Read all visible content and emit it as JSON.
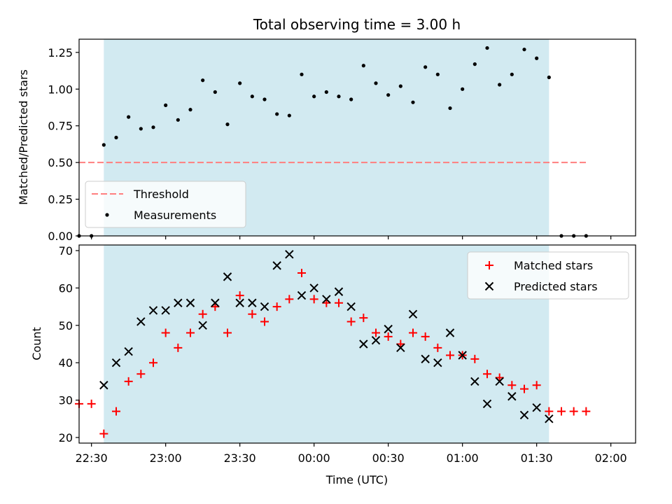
{
  "chart_data": [
    {
      "type": "scatter",
      "title": "Total observing time = 3.00 h",
      "xlabel": "",
      "ylabel": "Matched/Predicted stars",
      "ylim": [
        0,
        1.34
      ],
      "yticks": [
        "0.00",
        "0.25",
        "0.50",
        "0.75",
        "1.00",
        "1.25"
      ],
      "ytick_values": [
        0,
        0.25,
        0.5,
        0.75,
        1.0,
        1.25
      ],
      "xlim_minutes_from_midnight": [
        -95,
        130
      ],
      "shaded_span": [
        "22:35",
        "01:35"
      ],
      "shade_color": "#add8e6",
      "threshold": {
        "name": "Threshold",
        "value": 0.5,
        "x_range": [
          "22:25",
          "01:50"
        ],
        "color": "#ff7f7f"
      },
      "legend": {
        "placement": "lower-left",
        "entries": [
          "Threshold",
          "Measurements"
        ]
      },
      "series": [
        {
          "name": "Measurements",
          "color": "#000000",
          "x": [
            "22:25",
            "22:30",
            "22:35",
            "22:40",
            "22:45",
            "22:50",
            "22:55",
            "23:00",
            "23:05",
            "23:10",
            "23:15",
            "23:20",
            "23:25",
            "23:30",
            "23:35",
            "23:40",
            "23:45",
            "23:50",
            "23:55",
            "00:00",
            "00:05",
            "00:10",
            "00:15",
            "00:20",
            "00:25",
            "00:30",
            "00:35",
            "00:40",
            "00:45",
            "00:50",
            "00:55",
            "01:00",
            "01:05",
            "01:10",
            "01:15",
            "01:20",
            "01:25",
            "01:30",
            "01:35",
            "01:40",
            "01:45",
            "01:50"
          ],
          "y": [
            0.0,
            0.0,
            0.62,
            0.67,
            0.81,
            0.73,
            0.74,
            0.89,
            0.79,
            0.86,
            1.06,
            0.98,
            0.76,
            1.04,
            0.95,
            0.93,
            0.83,
            0.82,
            1.1,
            0.95,
            0.98,
            0.95,
            0.93,
            1.16,
            1.04,
            0.96,
            1.02,
            0.91,
            1.15,
            1.1,
            0.87,
            1.0,
            1.17,
            1.28,
            1.03,
            1.1,
            1.27,
            1.21,
            1.08,
            0.0,
            0.0,
            0.0
          ]
        }
      ]
    },
    {
      "type": "scatter",
      "title": "",
      "xlabel": "Time (UTC)",
      "ylabel": "Count",
      "ylim": [
        18.5,
        71.5
      ],
      "yticks": [
        "20",
        "30",
        "40",
        "50",
        "60",
        "70"
      ],
      "ytick_values": [
        20,
        30,
        40,
        50,
        60,
        70
      ],
      "xticks": [
        "22:30",
        "23:00",
        "23:30",
        "00:00",
        "00:30",
        "01:00",
        "01:30",
        "02:00"
      ],
      "xtick_values_minutes_from_midnight": [
        -90,
        -60,
        -30,
        0,
        30,
        60,
        90,
        120
      ],
      "xlim_minutes_from_midnight": [
        -95,
        130
      ],
      "shaded_span": [
        "22:35",
        "01:35"
      ],
      "shade_color": "#add8e6",
      "legend": {
        "placement": "upper-right",
        "entries": [
          "Matched stars",
          "Predicted stars"
        ]
      },
      "series": [
        {
          "name": "Matched stars",
          "marker": "plus",
          "color": "#ff0000",
          "x": [
            "22:25",
            "22:30",
            "22:35",
            "22:40",
            "22:45",
            "22:50",
            "22:55",
            "23:00",
            "23:05",
            "23:10",
            "23:15",
            "23:20",
            "23:25",
            "23:30",
            "23:35",
            "23:40",
            "23:45",
            "23:50",
            "23:55",
            "00:00",
            "00:05",
            "00:10",
            "00:15",
            "00:20",
            "00:25",
            "00:30",
            "00:35",
            "00:40",
            "00:45",
            "00:50",
            "00:55",
            "01:00",
            "01:05",
            "01:10",
            "01:15",
            "01:20",
            "01:25",
            "01:30",
            "01:35",
            "01:40",
            "01:45",
            "01:50"
          ],
          "y": [
            29,
            29,
            21,
            27,
            35,
            37,
            40,
            48,
            44,
            48,
            53,
            55,
            48,
            58,
            53,
            51,
            55,
            57,
            64,
            57,
            56,
            56,
            51,
            52,
            48,
            47,
            45,
            48,
            47,
            44,
            42,
            42,
            41,
            37,
            36,
            34,
            33,
            34,
            27,
            27,
            27,
            27
          ]
        },
        {
          "name": "Predicted stars",
          "marker": "x",
          "color": "#000000",
          "x": [
            "22:35",
            "22:40",
            "22:45",
            "22:50",
            "22:55",
            "23:00",
            "23:05",
            "23:10",
            "23:15",
            "23:20",
            "23:25",
            "23:30",
            "23:35",
            "23:40",
            "23:45",
            "23:50",
            "23:55",
            "00:00",
            "00:05",
            "00:10",
            "00:15",
            "00:20",
            "00:25",
            "00:30",
            "00:35",
            "00:40",
            "00:45",
            "00:50",
            "00:55",
            "01:00",
            "01:05",
            "01:10",
            "01:15",
            "01:20",
            "01:25",
            "01:30",
            "01:35"
          ],
          "y": [
            34,
            40,
            43,
            51,
            54,
            54,
            56,
            56,
            50,
            56,
            63,
            56,
            56,
            55,
            66,
            69,
            58,
            60,
            57,
            59,
            55,
            45,
            46,
            49,
            44,
            53,
            41,
            40,
            48,
            42,
            35,
            29,
            35,
            31,
            26,
            28,
            25
          ]
        }
      ]
    }
  ]
}
